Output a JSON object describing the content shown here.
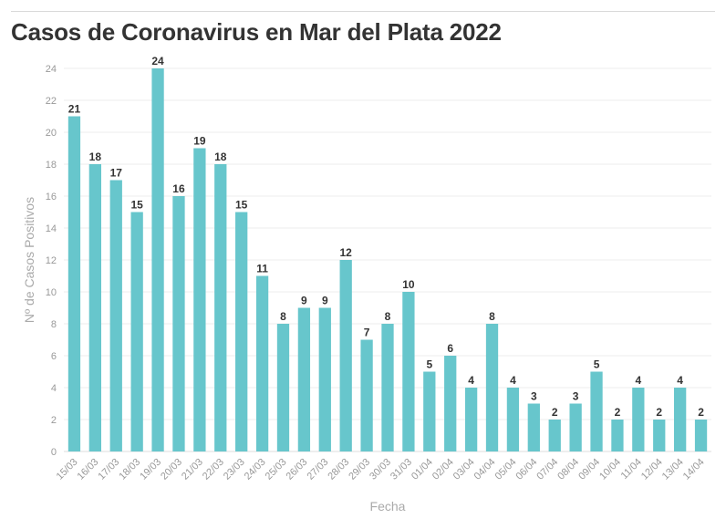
{
  "chart_data": {
    "type": "bar",
    "title": "Casos de Coronavirus en Mar del Plata 2022",
    "xlabel": "Fecha",
    "ylabel": "Nº de Casos Positivos",
    "ylim": [
      0,
      24
    ],
    "yticks": [
      0,
      2,
      4,
      6,
      8,
      10,
      12,
      14,
      16,
      18,
      20,
      22,
      24
    ],
    "grid": true,
    "bar_color": "#67c6cc",
    "categories": [
      "15/03",
      "16/03",
      "17/03",
      "18/03",
      "19/03",
      "20/03",
      "21/03",
      "22/03",
      "23/03",
      "24/03",
      "25/03",
      "26/03",
      "27/03",
      "28/03",
      "29/03",
      "30/03",
      "31/03",
      "01/04",
      "02/04",
      "03/04",
      "04/04",
      "05/04",
      "06/04",
      "07/04",
      "08/04",
      "09/04",
      "10/04",
      "11/04",
      "12/04",
      "13/04",
      "14/04"
    ],
    "values": [
      21,
      18,
      17,
      15,
      24,
      16,
      19,
      18,
      15,
      11,
      8,
      9,
      9,
      12,
      7,
      8,
      10,
      5,
      6,
      4,
      8,
      4,
      3,
      2,
      3,
      5,
      2,
      4,
      2,
      4,
      2
    ]
  }
}
